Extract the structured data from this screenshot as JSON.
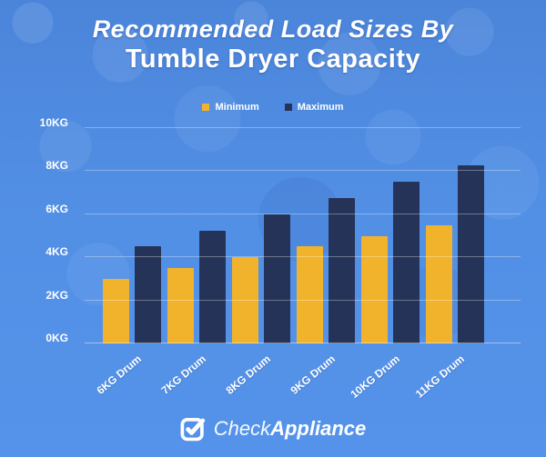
{
  "title": {
    "line1": "Recommended Load Sizes By",
    "line2": "Tumble Dryer Capacity"
  },
  "legend": {
    "items": [
      {
        "label": "Minimum",
        "color": "#f2b32c"
      },
      {
        "label": "Maximum",
        "color": "#263358"
      }
    ]
  },
  "chart_data": {
    "type": "bar",
    "title": "Recommended Load Sizes By Tumble Dryer Capacity",
    "categories": [
      "6KG Drum",
      "7KG Drum",
      "8KG Drum",
      "9KG Drum",
      "10KG Drum",
      "11KG Drum"
    ],
    "series": [
      {
        "name": "Minimum",
        "color": "#f2b32c",
        "values": [
          3,
          3.5,
          4,
          4.5,
          5,
          5.5
        ]
      },
      {
        "name": "Maximum",
        "color": "#263358",
        "values": [
          4.5,
          5.25,
          6,
          6.75,
          7.5,
          8.25
        ]
      }
    ],
    "xlabel": "",
    "ylabel": "",
    "y_ticks": [
      "0KG",
      "2KG",
      "4KG",
      "6KG",
      "8KG",
      "10KG"
    ],
    "ylim": [
      0,
      10
    ],
    "grid": true,
    "legend_position": "top"
  },
  "footer": {
    "brand_check": "Check",
    "brand_appliance": "Appliance"
  },
  "colors": {
    "background": "#5290e6",
    "bar_minimum": "#f2b32c",
    "bar_maximum": "#263358",
    "text": "#ffffff",
    "gridline": "rgba(255,255,255,0.32)"
  }
}
